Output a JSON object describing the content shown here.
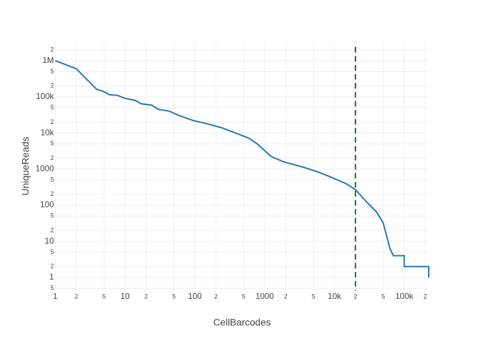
{
  "chart_data": {
    "type": "line",
    "x_title": "CellBarcodes",
    "y_title": "UniqueReads",
    "log_x": true,
    "log_y": true,
    "grid": true,
    "xlim": [
      1,
      224000
    ],
    "ylim": [
      0.43,
      3400000
    ],
    "xticks": [
      1,
      {
        "value": 2,
        "label": "2"
      },
      {
        "value": 5,
        "label": "5"
      },
      10,
      {
        "value": 20,
        "label": "2"
      },
      {
        "value": 50,
        "label": "5"
      },
      100,
      {
        "value": 200,
        "label": "2"
      },
      {
        "value": 500,
        "label": "5"
      },
      1000,
      {
        "value": 2000,
        "label": "2"
      },
      {
        "value": 5000,
        "label": "5"
      },
      {
        "value": 10000,
        "label": "10k"
      },
      {
        "value": 20000,
        "label": "2"
      },
      {
        "value": 50000,
        "label": "5"
      },
      {
        "value": 100000,
        "label": "100k"
      },
      {
        "value": 200000,
        "label": "2"
      }
    ],
    "yticks": [
      {
        "value": 0.5,
        "label": "5"
      },
      1,
      {
        "value": 2,
        "label": "2"
      },
      {
        "value": 5,
        "label": "5"
      },
      10,
      {
        "value": 20,
        "label": "2"
      },
      {
        "value": 50,
        "label": "5"
      },
      100,
      {
        "value": 200,
        "label": "2"
      },
      {
        "value": 500,
        "label": "5"
      },
      1000,
      {
        "value": 2000,
        "label": "2"
      },
      {
        "value": 5000,
        "label": "5"
      },
      {
        "value": 10000,
        "label": "10k"
      },
      {
        "value": 20000,
        "label": "2"
      },
      {
        "value": 50000,
        "label": "5"
      },
      {
        "value": 100000,
        "label": "100k"
      },
      {
        "value": 200000,
        "label": "2"
      },
      {
        "value": 500000,
        "label": "5"
      },
      {
        "value": 1000000,
        "label": "1M"
      },
      {
        "value": 2000000,
        "label": "2"
      }
    ],
    "x": [
      1,
      2,
      3.9,
      4.9,
      5.9,
      7.8,
      10,
      13.8,
      17,
      24,
      30,
      43,
      60,
      95,
      150,
      240,
      380,
      600,
      780,
      940,
      1250,
      1850,
      3700,
      5800,
      9100,
      14500,
      20000,
      28000,
      40000,
      50000,
      56000,
      63000,
      70000,
      100000,
      100000,
      224000,
      224000
    ],
    "series": [
      {
        "color": "#1f77b4",
        "values": [
          1000000,
          600000,
          162000,
          140000,
          115000,
          110000,
          91000,
          80000,
          64000,
          59000,
          45000,
          40000,
          30000,
          22000,
          18000,
          14000,
          10000,
          7100,
          5000,
          3600,
          2200,
          1600,
          1100,
          830,
          590,
          400,
          270,
          130,
          65,
          32,
          14,
          6,
          4,
          4,
          2,
          2,
          1
        ]
      }
    ],
    "vline": {
      "x": 20000,
      "color": "#007f00"
    }
  }
}
